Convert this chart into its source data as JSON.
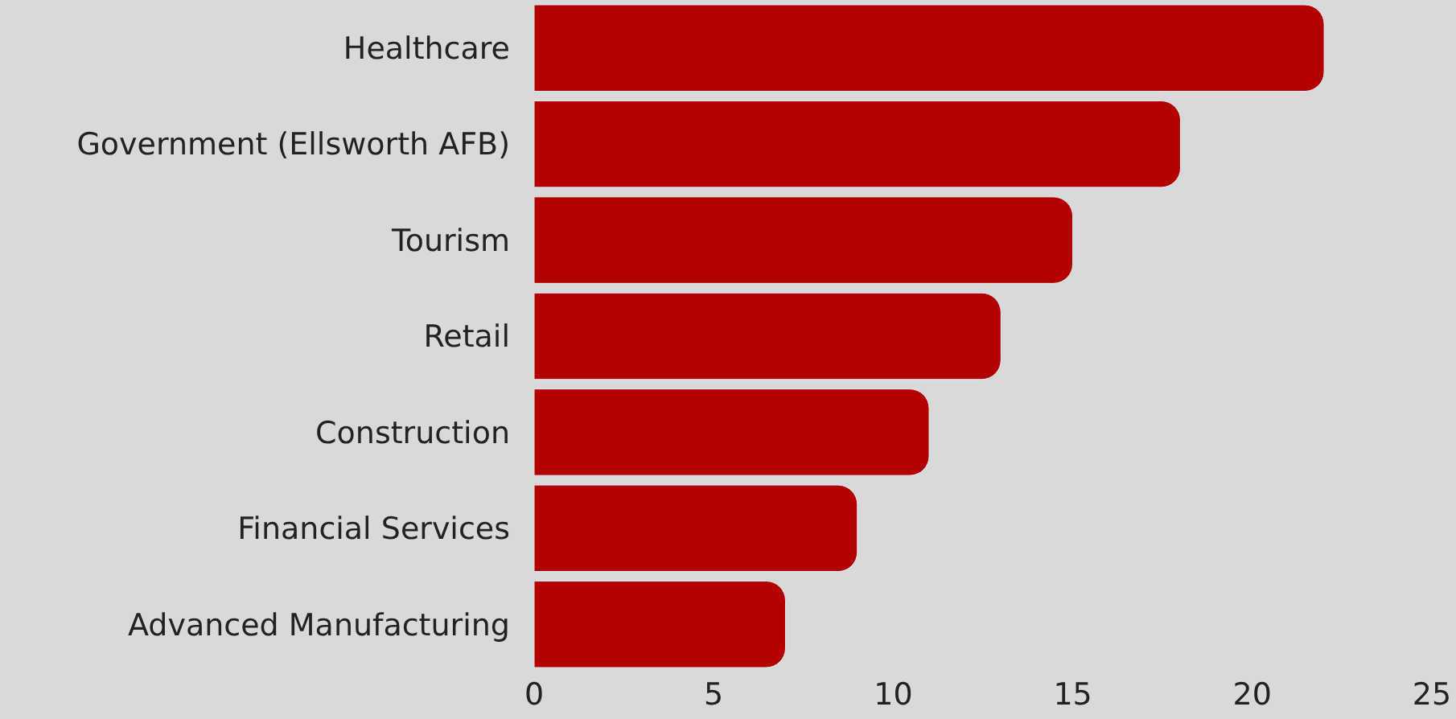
{
  "chart_data": {
    "type": "bar",
    "orientation": "horizontal",
    "categories": [
      "Healthcare",
      "Government (Ellsworth AFB)",
      "Tourism",
      "Retail",
      "Construction",
      "Financial Services",
      "Advanced Manufacturing"
    ],
    "values": [
      22,
      18,
      15,
      13,
      11,
      9,
      7
    ],
    "color": "#b30000",
    "xlim": [
      0,
      25
    ],
    "xticks": [
      0,
      5,
      10,
      15,
      20,
      25
    ],
    "grid": false,
    "legend": false
  }
}
